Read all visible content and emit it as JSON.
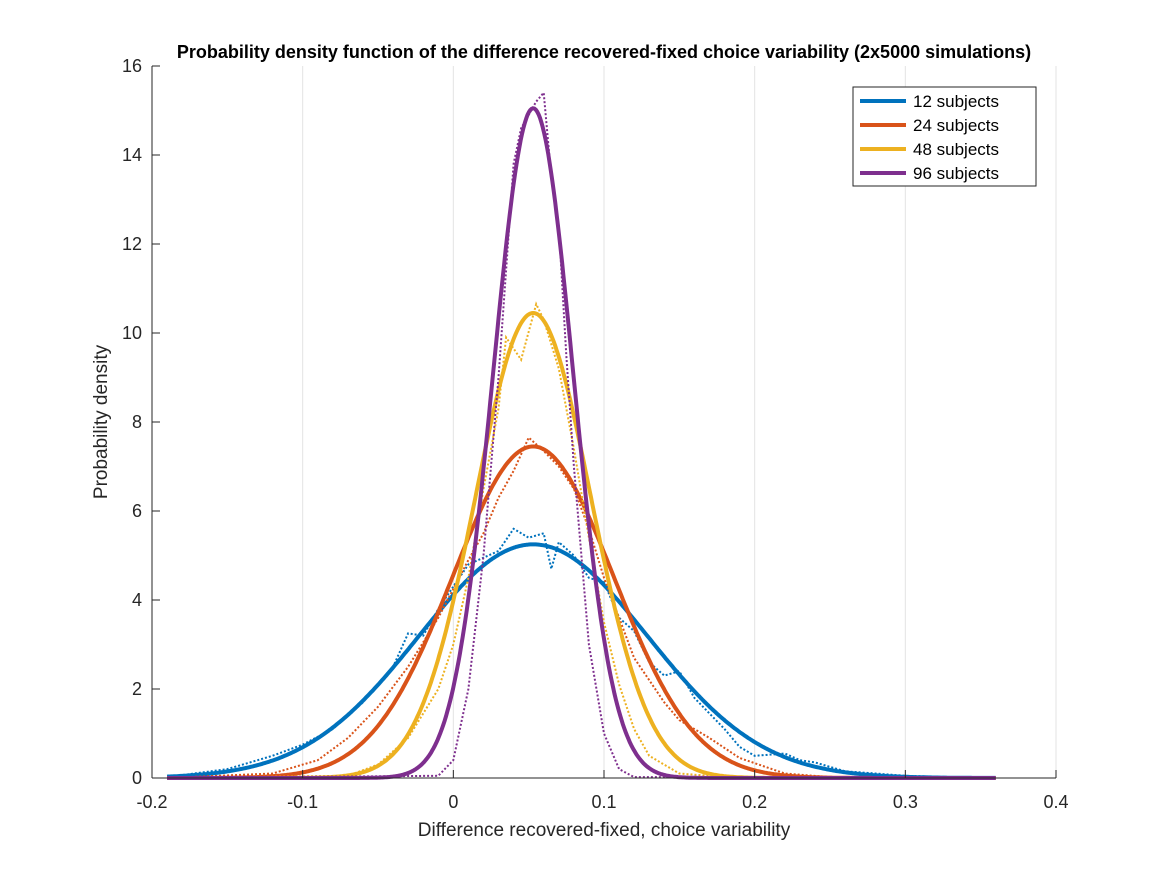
{
  "chart_data": {
    "type": "line",
    "title": "Probability density function of the difference recovered-fixed choice variability (2x5000 simulations)",
    "xlabel": "Difference recovered-fixed, choice variability",
    "ylabel": "Probability density",
    "xlim": [
      -0.2,
      0.4
    ],
    "ylim": [
      0,
      16
    ],
    "xticks": [
      -0.2,
      -0.1,
      0,
      0.1,
      0.2,
      0.3,
      0.4
    ],
    "xtick_labels": [
      "-0.2",
      "-0.1",
      "0",
      "0.1",
      "0.2",
      "0.3",
      "0.4"
    ],
    "yticks": [
      0,
      2,
      4,
      6,
      8,
      10,
      12,
      14,
      16
    ],
    "ytick_labels": [
      "0",
      "2",
      "4",
      "6",
      "8",
      "10",
      "12",
      "14",
      "16"
    ],
    "grid": "x-major",
    "legend_position": "top-right",
    "x_range_data": [
      -0.19,
      0.36
    ],
    "series": [
      {
        "name": "12 subjects",
        "color": "#0072BD",
        "fit": {
          "distribution": "normal",
          "mean": 0.053,
          "peak": 5.25
        },
        "empirical_kde": [
          [
            -0.19,
            0.02
          ],
          [
            -0.15,
            0.2
          ],
          [
            -0.12,
            0.5
          ],
          [
            -0.1,
            0.75
          ],
          [
            -0.08,
            1.1
          ],
          [
            -0.06,
            1.7
          ],
          [
            -0.04,
            2.5
          ],
          [
            -0.03,
            3.25
          ],
          [
            -0.02,
            3.2
          ],
          [
            -0.01,
            3.8
          ],
          [
            0.0,
            4.3
          ],
          [
            0.01,
            4.8
          ],
          [
            0.02,
            4.95
          ],
          [
            0.03,
            5.1
          ],
          [
            0.04,
            5.6
          ],
          [
            0.05,
            5.4
          ],
          [
            0.06,
            5.5
          ],
          [
            0.065,
            4.7
          ],
          [
            0.07,
            5.3
          ],
          [
            0.08,
            5.0
          ],
          [
            0.09,
            4.5
          ],
          [
            0.1,
            4.4
          ],
          [
            0.11,
            3.6
          ],
          [
            0.12,
            3.3
          ],
          [
            0.13,
            2.6
          ],
          [
            0.14,
            2.3
          ],
          [
            0.15,
            2.4
          ],
          [
            0.16,
            1.8
          ],
          [
            0.18,
            1.1
          ],
          [
            0.19,
            0.7
          ],
          [
            0.2,
            0.5
          ],
          [
            0.22,
            0.55
          ],
          [
            0.23,
            0.4
          ],
          [
            0.24,
            0.35
          ],
          [
            0.26,
            0.15
          ],
          [
            0.28,
            0.1
          ],
          [
            0.3,
            0.05
          ],
          [
            0.33,
            0.02
          ],
          [
            0.36,
            0.0
          ]
        ]
      },
      {
        "name": "24 subjects",
        "color": "#D95319",
        "fit": {
          "distribution": "normal",
          "mean": 0.053,
          "peak": 7.45
        },
        "empirical_kde": [
          [
            -0.19,
            0.0
          ],
          [
            -0.12,
            0.1
          ],
          [
            -0.09,
            0.4
          ],
          [
            -0.07,
            0.9
          ],
          [
            -0.05,
            1.6
          ],
          [
            -0.03,
            2.5
          ],
          [
            -0.01,
            3.6
          ],
          [
            0.01,
            4.9
          ],
          [
            0.02,
            5.5
          ],
          [
            0.03,
            6.3
          ],
          [
            0.04,
            6.9
          ],
          [
            0.05,
            7.65
          ],
          [
            0.06,
            7.35
          ],
          [
            0.07,
            7.0
          ],
          [
            0.08,
            6.5
          ],
          [
            0.09,
            5.6
          ],
          [
            0.1,
            4.5
          ],
          [
            0.11,
            3.6
          ],
          [
            0.12,
            2.7
          ],
          [
            0.13,
            2.2
          ],
          [
            0.14,
            1.7
          ],
          [
            0.15,
            1.3
          ],
          [
            0.17,
            0.9
          ],
          [
            0.19,
            0.45
          ],
          [
            0.22,
            0.1
          ],
          [
            0.25,
            0.02
          ],
          [
            0.36,
            0.0
          ]
        ]
      },
      {
        "name": "48 subjects",
        "color": "#EDB120",
        "fit": {
          "distribution": "normal",
          "mean": 0.053,
          "peak": 10.45
        },
        "empirical_kde": [
          [
            -0.19,
            0.0
          ],
          [
            -0.07,
            0.05
          ],
          [
            -0.05,
            0.3
          ],
          [
            -0.03,
            0.9
          ],
          [
            -0.01,
            2.0
          ],
          [
            0.0,
            3.0
          ],
          [
            0.01,
            4.5
          ],
          [
            0.02,
            6.5
          ],
          [
            0.03,
            8.3
          ],
          [
            0.035,
            9.9
          ],
          [
            0.045,
            9.4
          ],
          [
            0.055,
            10.65
          ],
          [
            0.06,
            10.3
          ],
          [
            0.07,
            9.2
          ],
          [
            0.08,
            7.4
          ],
          [
            0.09,
            5.4
          ],
          [
            0.1,
            3.5
          ],
          [
            0.11,
            2.1
          ],
          [
            0.12,
            1.1
          ],
          [
            0.13,
            0.5
          ],
          [
            0.15,
            0.1
          ],
          [
            0.18,
            0.02
          ],
          [
            0.36,
            0.0
          ]
        ]
      },
      {
        "name": "96 subjects",
        "color": "#7E2F8E",
        "fit": {
          "distribution": "normal",
          "mean": 0.053,
          "peak": 15.05
        },
        "empirical_kde": [
          [
            -0.19,
            0.0
          ],
          [
            -0.01,
            0.05
          ],
          [
            0.0,
            0.4
          ],
          [
            0.01,
            2.0
          ],
          [
            0.02,
            5.0
          ],
          [
            0.03,
            9.0
          ],
          [
            0.04,
            13.8
          ],
          [
            0.045,
            14.6
          ],
          [
            0.05,
            14.9
          ],
          [
            0.055,
            15.2
          ],
          [
            0.06,
            15.4
          ],
          [
            0.065,
            13.5
          ],
          [
            0.07,
            12.4
          ],
          [
            0.075,
            9.5
          ],
          [
            0.08,
            7.0
          ],
          [
            0.09,
            3.0
          ],
          [
            0.1,
            1.0
          ],
          [
            0.11,
            0.2
          ],
          [
            0.12,
            0.02
          ],
          [
            0.36,
            0.0
          ]
        ]
      }
    ]
  }
}
